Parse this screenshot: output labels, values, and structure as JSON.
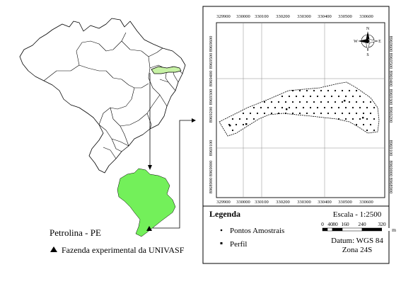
{
  "left_panel": {
    "municipality_label": "Petrolina - PE",
    "farm_label": "Fazenda experimental da UNIVASF"
  },
  "map_frame": {
    "top_ticks": [
      "329900",
      "330000",
      "330100",
      "330200",
      "330300",
      "330400",
      "330500",
      "330600"
    ],
    "bottom_ticks": [
      "329900",
      "330000",
      "330100",
      "330200",
      "330300",
      "330400",
      "330500",
      "330600"
    ],
    "left_ticks": [
      "8969600",
      "8969500",
      "8969400",
      "8969300",
      "8969200",
      "8969100",
      "8969000",
      "8968900"
    ],
    "right_ticks": [
      "8969600",
      "8969500",
      "8969400",
      "8969300",
      "8969200",
      "8969100",
      "8969000",
      "8968900"
    ],
    "compass": {
      "n": "N",
      "s": "S",
      "e": "E",
      "w": "W"
    }
  },
  "legend": {
    "title": "Legenda",
    "items": [
      {
        "label": "Pontos Amostrais",
        "symbol": "small-dot"
      },
      {
        "label": "Perfil",
        "symbol": "square"
      }
    ]
  },
  "scale": {
    "title": "Escala - 1:2500",
    "labels": [
      "0",
      "40",
      "80",
      "160",
      "240",
      "320"
    ],
    "unit": "m"
  },
  "datum": {
    "line1": "Datum: WGS 84",
    "line2": "Zona 24S"
  },
  "colors": {
    "highlight_green": "#73F05A",
    "state_green": "#c7f2a5",
    "line": "#000000",
    "grid": "#8a8a8a"
  }
}
